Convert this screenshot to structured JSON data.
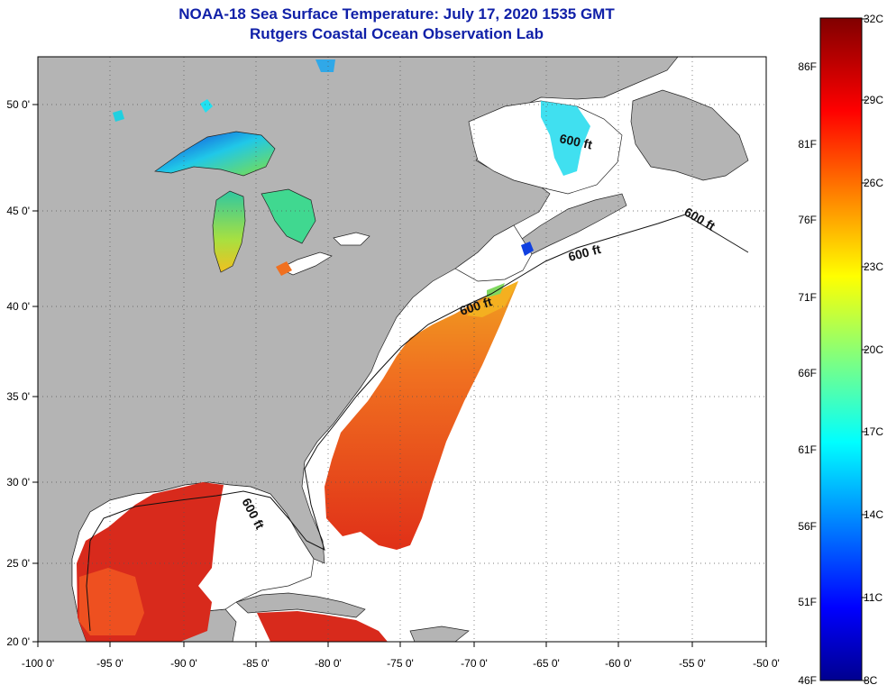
{
  "header": {
    "title": "NOAA-18 Sea Surface Temperature:  July 17, 2020 1535 GMT",
    "subtitle": "Rutgers Coastal Ocean Observation Lab"
  },
  "map": {
    "lon_labels": [
      "-100 0'",
      "-95 0'",
      "-90 0'",
      "-85 0'",
      "-80 0'",
      "-75 0'",
      "-70 0'",
      "-65 0'",
      "-60 0'",
      "-55 0'",
      "-50 0'"
    ],
    "lat_labels": [
      "50 0'",
      "45 0'",
      "40 0'",
      "35 0'",
      "30 0'",
      "25 0'",
      "20 0'"
    ],
    "contour_labels": [
      "600 ft",
      "600 ft",
      "600 ft",
      "600 ft",
      "600 ft"
    ],
    "colors": {
      "land": "#b4b4b4",
      "water_no_data": "#ffffff",
      "sst_warm": "#d8281c",
      "sst_orange": "#ee7a1c",
      "sst_cold": "#1020c8",
      "sst_cyan": "#20e8f0"
    }
  },
  "colorbar": {
    "celsius_labels": [
      "32C",
      "29C",
      "26C",
      "23C",
      "20C",
      "17C",
      "14C",
      "11C",
      "8C"
    ],
    "fahrenheit_labels": [
      "86F",
      "81F",
      "76F",
      "71F",
      "66F",
      "61F",
      "56F",
      "51F",
      "46F"
    ],
    "range_c": [
      8,
      32
    ]
  }
}
